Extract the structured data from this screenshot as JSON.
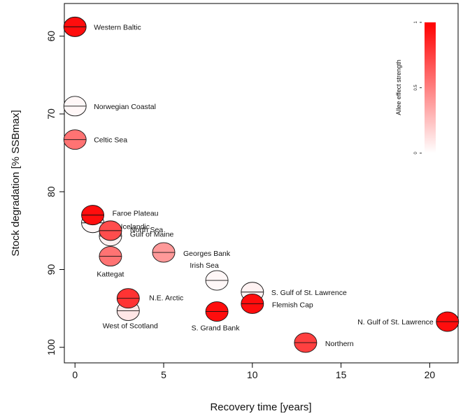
{
  "chart_data": {
    "type": "scatter",
    "title": "",
    "xlabel": "Recovery time [years]",
    "ylabel": "Stock degradation [% SSBmax]",
    "xlim": [
      -0.6,
      21.6
    ],
    "ylim": [
      55.8,
      102
    ],
    "y_inverted": true,
    "xticks": [
      "0",
      "5",
      "10",
      "15",
      "20"
    ],
    "yticks": [
      "60",
      "70",
      "80",
      "90",
      "100"
    ],
    "grid": false,
    "legend": {
      "title": "Allee effect strength",
      "placement": "top-right",
      "ticks": [
        "0",
        "0.5",
        "1"
      ],
      "color_low": "#ffffff",
      "color_high": "#ff0000"
    },
    "points": [
      {
        "label": "Western Baltic",
        "x": 0,
        "y": 58.8,
        "allee": 0.95
      },
      {
        "label": "Norwegian Coastal",
        "x": 0,
        "y": 69.0,
        "allee": 0.03
      },
      {
        "label": "Celtic Sea",
        "x": 0,
        "y": 73.3,
        "allee": 0.55
      },
      {
        "label": "Icelandic",
        "x": 1,
        "y": 84.0,
        "allee": 0.03
      },
      {
        "label": "Faroe Plateau",
        "x": 1,
        "y": 83.0,
        "allee": 0.95
      },
      {
        "label": "Gulf of Maine",
        "x": 2,
        "y": 85.7,
        "allee": 0.06
      },
      {
        "label": "North Sea",
        "x": 2,
        "y": 85.0,
        "allee": 0.7
      },
      {
        "label": "Kattegat",
        "x": 2,
        "y": 88.3,
        "allee": 0.55
      },
      {
        "label": "Georges Bank",
        "x": 5,
        "y": 87.8,
        "allee": 0.4
      },
      {
        "label": "West of Scotland",
        "x": 3,
        "y": 95.3,
        "allee": 0.1
      },
      {
        "label": "N.E. Arctic",
        "x": 3,
        "y": 93.7,
        "allee": 0.8
      },
      {
        "label": "Irish Sea",
        "x": 8,
        "y": 91.4,
        "allee": 0.03
      },
      {
        "label": "S. Grand Bank",
        "x": 8,
        "y": 95.4,
        "allee": 0.95
      },
      {
        "label": "S. Gulf of St. Lawrence",
        "x": 10,
        "y": 92.9,
        "allee": 0.05
      },
      {
        "label": "Flemish Cap",
        "x": 10,
        "y": 94.4,
        "allee": 0.95
      },
      {
        "label": "Northern",
        "x": 13,
        "y": 99.4,
        "allee": 0.75
      },
      {
        "label": "N. Gulf of St. Lawrence",
        "x": 21,
        "y": 96.7,
        "allee": 0.95
      }
    ]
  }
}
